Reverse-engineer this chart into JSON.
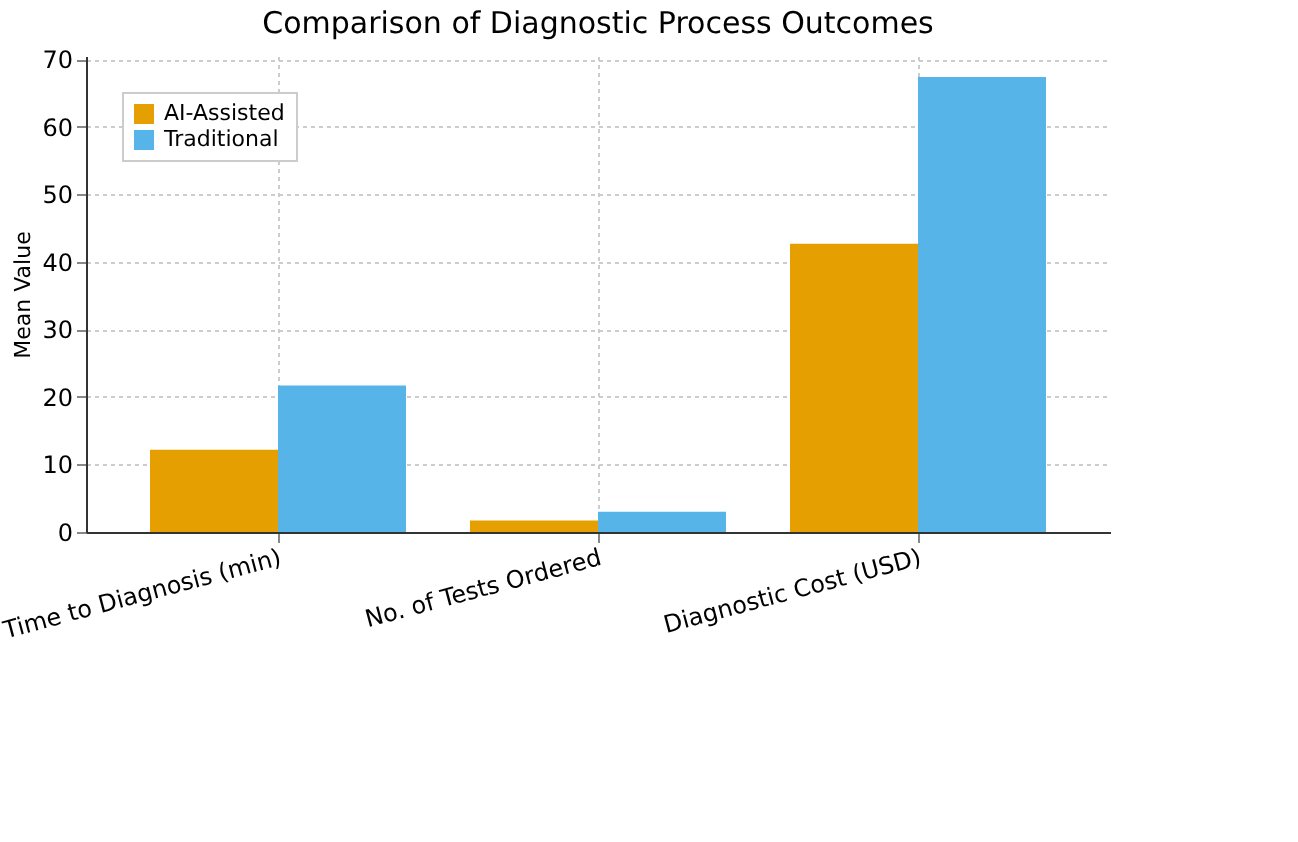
{
  "chart_data": {
    "type": "bar",
    "title": "Comparison of Diagnostic Process Outcomes",
    "ylabel": "Mean Value",
    "categories": [
      "Time to Diagnosis (min)",
      "No. of Tests Ordered",
      "Diagnostic Cost (USD)"
    ],
    "series": [
      {
        "name": "AI-Assisted",
        "color": "#e69f00",
        "values": [
          12.2,
          1.7,
          42.7
        ]
      },
      {
        "name": "Traditional",
        "color": "#56b4e9",
        "values": [
          21.7,
          3.0,
          67.4
        ]
      }
    ],
    "ylim": [
      0,
      70.5
    ],
    "yticks": [
      0,
      10,
      20,
      30,
      40,
      50,
      60,
      70
    ],
    "grid": true,
    "legend": "top left"
  }
}
